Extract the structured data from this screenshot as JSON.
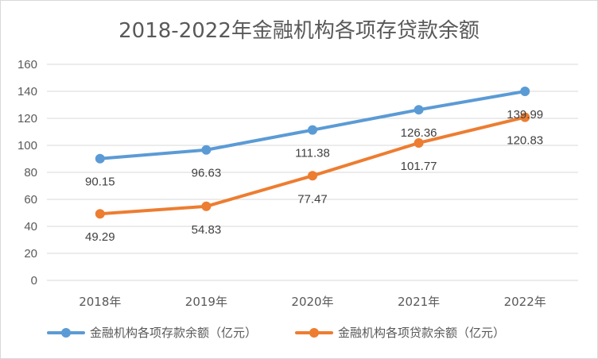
{
  "chart_data": {
    "type": "line",
    "title": "2018-2022年金融机构各项存贷款余额",
    "categories": [
      "2018年",
      "2019年",
      "2020年",
      "2021年",
      "2022年"
    ],
    "series": [
      {
        "name": "金融机构各项存款余额（亿元）",
        "values": [
          90.15,
          96.63,
          111.38,
          126.36,
          139.99
        ],
        "labels": [
          "90.15",
          "96.63",
          "111.38",
          "126.36",
          "139.99"
        ],
        "color": "#5b9bd5"
      },
      {
        "name": "金融机构各项贷款余额（亿元）",
        "values": [
          49.29,
          54.83,
          77.47,
          101.77,
          120.83
        ],
        "labels": [
          "49.29",
          "54.83",
          "77.47",
          "101.77",
          "120.83"
        ],
        "color": "#ed7d31"
      }
    ],
    "ylim": [
      0,
      160
    ],
    "yticks": [
      0,
      20,
      40,
      60,
      80,
      100,
      120,
      140,
      160
    ],
    "ytick_labels": [
      "0",
      "20",
      "40",
      "60",
      "80",
      "100",
      "120",
      "140",
      "160"
    ],
    "grid": true,
    "legend": "bottom"
  }
}
